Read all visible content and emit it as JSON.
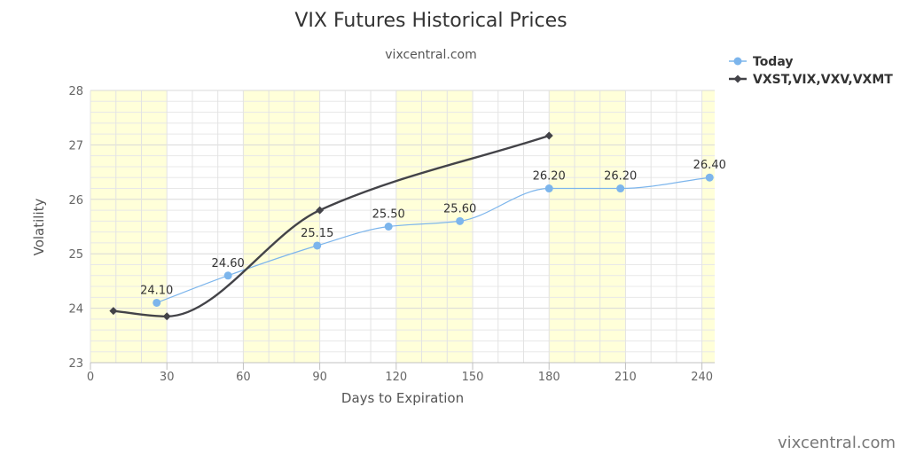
{
  "chart_data": {
    "type": "line",
    "title": "VIX Futures Historical Prices",
    "subtitle": "vixcentral.com",
    "xlabel": "Days to Expiration",
    "ylabel": "Volatility",
    "xlim": [
      0,
      245
    ],
    "ylim": [
      23,
      28
    ],
    "x_ticks": [
      0,
      30,
      60,
      90,
      120,
      150,
      180,
      210,
      240
    ],
    "y_ticks": [
      23,
      24,
      25,
      26,
      27,
      28
    ],
    "shaded_bands": [
      [
        0,
        30
      ],
      [
        60,
        90
      ],
      [
        120,
        150
      ],
      [
        180,
        210
      ],
      [
        240,
        245
      ]
    ],
    "legend_position": "top-right",
    "grid": true,
    "series": [
      {
        "name": "Today",
        "color": "#7cb5ec",
        "marker": "circle",
        "points": [
          {
            "x": 26,
            "y": 24.1,
            "label": "24.10"
          },
          {
            "x": 54,
            "y": 24.6,
            "label": "24.60"
          },
          {
            "x": 89,
            "y": 25.15,
            "label": "25.15"
          },
          {
            "x": 117,
            "y": 25.5,
            "label": "25.50"
          },
          {
            "x": 145,
            "y": 25.6,
            "label": "25.60"
          },
          {
            "x": 180,
            "y": 26.2,
            "label": "26.20"
          },
          {
            "x": 208,
            "y": 26.2,
            "label": "26.20"
          },
          {
            "x": 243,
            "y": 26.4,
            "label": "26.40"
          }
        ]
      },
      {
        "name": "VXST,VIX,VXV,VXMT",
        "color": "#434348",
        "marker": "diamond",
        "points": [
          {
            "x": 9,
            "y": 23.95
          },
          {
            "x": 30,
            "y": 23.85
          },
          {
            "x": 90,
            "y": 25.8
          },
          {
            "x": 180,
            "y": 27.17
          }
        ]
      }
    ]
  },
  "credit": "vixcentral.com"
}
